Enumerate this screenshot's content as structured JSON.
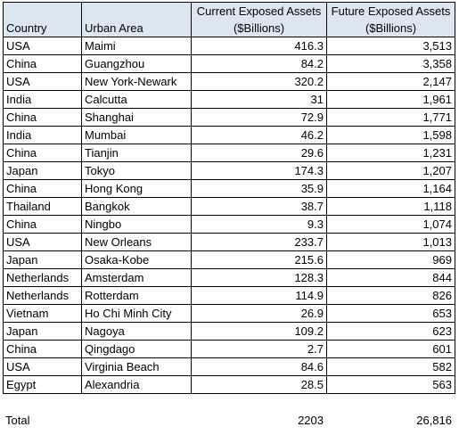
{
  "headers": {
    "country": "Country",
    "urban_area": "Urban Area",
    "current_line1": "Current Exposed Assets",
    "current_line2": "($Billions)",
    "future_line1": "Future Exposed Assets",
    "future_line2": "($Billions)"
  },
  "rows": [
    {
      "country": "USA",
      "urban_area": "Maimi",
      "current": "416.3",
      "future": "3,513"
    },
    {
      "country": "China",
      "urban_area": "Guangzhou",
      "current": "84.2",
      "future": "3,358"
    },
    {
      "country": "USA",
      "urban_area": "New York-Newark",
      "current": "320.2",
      "future": "2,147"
    },
    {
      "country": "India",
      "urban_area": "Calcutta",
      "current": "31",
      "future": "1,961"
    },
    {
      "country": "China",
      "urban_area": "Shanghai",
      "current": "72.9",
      "future": "1,771"
    },
    {
      "country": "India",
      "urban_area": "Mumbai",
      "current": "46.2",
      "future": "1,598"
    },
    {
      "country": "China",
      "urban_area": "Tianjin",
      "current": "29.6",
      "future": "1,231"
    },
    {
      "country": "Japan",
      "urban_area": "Tokyo",
      "current": "174.3",
      "future": "1,207"
    },
    {
      "country": "China",
      "urban_area": "Hong Kong",
      "current": "35.9",
      "future": "1,164"
    },
    {
      "country": "Thailand",
      "urban_area": "Bangkok",
      "current": "38.7",
      "future": "1,118"
    },
    {
      "country": "China",
      "urban_area": "Ningbo",
      "current": "9.3",
      "future": "1,074"
    },
    {
      "country": "USA",
      "urban_area": "New Orleans",
      "current": "233.7",
      "future": "1,013"
    },
    {
      "country": "Japan",
      "urban_area": "Osaka-Kobe",
      "current": "215.6",
      "future": "969"
    },
    {
      "country": "Netherlands",
      "urban_area": "Amsterdam",
      "current": "128.3",
      "future": "844"
    },
    {
      "country": "Netherlands",
      "urban_area": "Rotterdam",
      "current": "114.9",
      "future": "826"
    },
    {
      "country": "Vietnam",
      "urban_area": "Ho Chi Minh City",
      "current": "26.9",
      "future": "653"
    },
    {
      "country": "Japan",
      "urban_area": "Nagoya",
      "current": "109.2",
      "future": "623"
    },
    {
      "country": "China",
      "urban_area": "Qingdago",
      "current": "2.7",
      "future": "601"
    },
    {
      "country": "USA",
      "urban_area": "Virginia Beach",
      "current": "84.6",
      "future": "582"
    },
    {
      "country": "Egypt",
      "urban_area": "Alexandria",
      "current": "28.5",
      "future": "563"
    }
  ],
  "total": {
    "label": "Total",
    "current": "2203",
    "future": "26,816"
  },
  "colors": {
    "header_fill": "#dce6f1",
    "border": "#000000"
  }
}
